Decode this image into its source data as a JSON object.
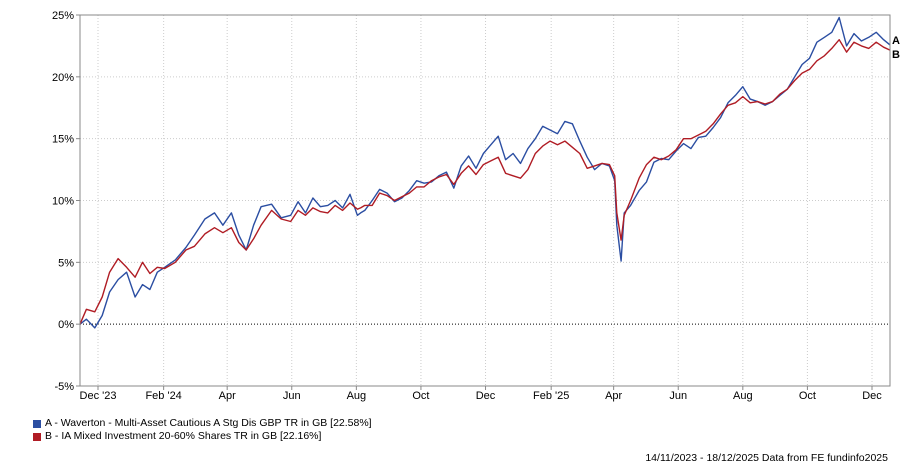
{
  "chart_data": {
    "type": "line",
    "ylim": [
      -5,
      25
    ],
    "y_ticks": [
      25,
      20,
      15,
      10,
      5,
      0,
      -5
    ],
    "y_tick_labels": [
      "25%",
      "20%",
      "15%",
      "10%",
      "5%",
      "0%",
      "-5%"
    ],
    "x_tick_labels": [
      "Dec '23",
      "Feb '24",
      "Apr",
      "Jun",
      "Aug",
      "Oct",
      "Dec",
      "Feb '25",
      "Apr",
      "Jun",
      "Aug",
      "Oct",
      "Dec"
    ],
    "x_tick_dates": [
      "2023-12-01",
      "2024-02-01",
      "2024-04-01",
      "2024-06-01",
      "2024-08-01",
      "2024-10-01",
      "2024-12-01",
      "2025-02-01",
      "2025-04-01",
      "2025-06-01",
      "2025-08-01",
      "2025-10-01",
      "2025-12-01"
    ],
    "x_range": [
      "2023-11-14",
      "2025-12-18"
    ],
    "grid": true,
    "zero_line": "dotted",
    "legend_position": "bottom-left",
    "series": [
      {
        "name": "A - Waverton - Multi-Asset Cautious A Stg Dis GBP TR in GB [22.58%]",
        "end_label": "A",
        "color": "#2b4ea2",
        "x": [
          "2023-11-14",
          "2023-11-20",
          "2023-11-28",
          "2023-12-05",
          "2023-12-12",
          "2023-12-20",
          "2023-12-28",
          "2024-01-05",
          "2024-01-12",
          "2024-01-19",
          "2024-01-26",
          "2024-02-02",
          "2024-02-12",
          "2024-02-22",
          "2024-03-01",
          "2024-03-11",
          "2024-03-20",
          "2024-03-28",
          "2024-04-05",
          "2024-04-12",
          "2024-04-19",
          "2024-04-26",
          "2024-05-03",
          "2024-05-13",
          "2024-05-22",
          "2024-05-31",
          "2024-06-07",
          "2024-06-14",
          "2024-06-21",
          "2024-06-28",
          "2024-07-05",
          "2024-07-12",
          "2024-07-19",
          "2024-07-26",
          "2024-08-02",
          "2024-08-05",
          "2024-08-09",
          "2024-08-16",
          "2024-08-23",
          "2024-08-30",
          "2024-09-06",
          "2024-09-13",
          "2024-09-20",
          "2024-09-27",
          "2024-10-04",
          "2024-10-11",
          "2024-10-18",
          "2024-10-25",
          "2024-11-01",
          "2024-11-08",
          "2024-11-15",
          "2024-11-22",
          "2024-11-29",
          "2024-12-06",
          "2024-12-13",
          "2024-12-20",
          "2024-12-27",
          "2025-01-03",
          "2025-01-10",
          "2025-01-17",
          "2025-01-24",
          "2025-01-31",
          "2025-02-07",
          "2025-02-14",
          "2025-02-21",
          "2025-02-28",
          "2025-03-07",
          "2025-03-14",
          "2025-03-21",
          "2025-03-28",
          "2025-04-02",
          "2025-04-04",
          "2025-04-08",
          "2025-04-11",
          "2025-04-17",
          "2025-04-25",
          "2025-05-02",
          "2025-05-09",
          "2025-05-16",
          "2025-05-23",
          "2025-05-30",
          "2025-06-06",
          "2025-06-13",
          "2025-06-20",
          "2025-06-27",
          "2025-07-04",
          "2025-07-11",
          "2025-07-18",
          "2025-07-25",
          "2025-08-01",
          "2025-08-08",
          "2025-08-15",
          "2025-08-22",
          "2025-08-29",
          "2025-09-05",
          "2025-09-12",
          "2025-09-19",
          "2025-09-26",
          "2025-10-03",
          "2025-10-10",
          "2025-10-17",
          "2025-10-24",
          "2025-10-31",
          "2025-11-07",
          "2025-11-14",
          "2025-11-21",
          "2025-11-28",
          "2025-12-05",
          "2025-12-12",
          "2025-12-18"
        ],
        "values": [
          0,
          0.4,
          -0.3,
          0.7,
          2.6,
          3.6,
          4.2,
          2.2,
          3.2,
          2.8,
          4.2,
          4.6,
          5.2,
          6.2,
          7.2,
          8.5,
          9.0,
          8.0,
          9.0,
          7.2,
          6.0,
          8.0,
          9.5,
          9.7,
          8.6,
          8.8,
          9.9,
          9.0,
          10.2,
          9.5,
          9.6,
          10.0,
          9.4,
          10.5,
          8.8,
          9.0,
          9.2,
          10.0,
          10.9,
          10.6,
          9.9,
          10.2,
          10.8,
          11.6,
          11.4,
          11.5,
          12.0,
          12.3,
          11.0,
          12.8,
          13.6,
          12.6,
          13.8,
          14.5,
          15.2,
          13.3,
          13.8,
          13.0,
          14.2,
          15.0,
          16.0,
          15.7,
          15.4,
          16.4,
          16.2,
          14.8,
          13.5,
          12.5,
          13.0,
          12.8,
          11.6,
          8.0,
          5.1,
          9.0,
          9.6,
          10.8,
          11.5,
          13.1,
          13.4,
          13.3,
          14.0,
          14.6,
          14.2,
          15.1,
          15.2,
          15.9,
          16.7,
          17.9,
          18.5,
          19.2,
          18.2,
          18.0,
          17.7,
          18.0,
          18.5,
          19.0,
          20.0,
          21.0,
          21.5,
          22.8,
          23.2,
          23.6,
          24.8,
          22.5,
          23.5,
          22.9,
          23.2,
          23.6,
          23.0,
          22.58
        ]
      },
      {
        "name": "B - IA Mixed Investment 20-60% Shares TR in GB [22.16%]",
        "end_label": "B",
        "color": "#b01c24",
        "x": [
          "2023-11-14",
          "2023-11-20",
          "2023-11-28",
          "2023-12-05",
          "2023-12-12",
          "2023-12-20",
          "2023-12-28",
          "2024-01-05",
          "2024-01-12",
          "2024-01-19",
          "2024-01-26",
          "2024-02-02",
          "2024-02-12",
          "2024-02-22",
          "2024-03-01",
          "2024-03-11",
          "2024-03-20",
          "2024-03-28",
          "2024-04-05",
          "2024-04-12",
          "2024-04-19",
          "2024-04-26",
          "2024-05-03",
          "2024-05-13",
          "2024-05-22",
          "2024-05-31",
          "2024-06-07",
          "2024-06-14",
          "2024-06-21",
          "2024-06-28",
          "2024-07-05",
          "2024-07-12",
          "2024-07-19",
          "2024-07-26",
          "2024-08-02",
          "2024-08-05",
          "2024-08-09",
          "2024-08-16",
          "2024-08-23",
          "2024-08-30",
          "2024-09-06",
          "2024-09-13",
          "2024-09-20",
          "2024-09-27",
          "2024-10-04",
          "2024-10-11",
          "2024-10-18",
          "2024-10-25",
          "2024-11-01",
          "2024-11-08",
          "2024-11-15",
          "2024-11-22",
          "2024-11-29",
          "2024-12-06",
          "2024-12-13",
          "2024-12-20",
          "2024-12-27",
          "2025-01-03",
          "2025-01-10",
          "2025-01-17",
          "2025-01-24",
          "2025-01-31",
          "2025-02-07",
          "2025-02-14",
          "2025-02-21",
          "2025-02-28",
          "2025-03-07",
          "2025-03-14",
          "2025-03-21",
          "2025-03-28",
          "2025-04-02",
          "2025-04-04",
          "2025-04-08",
          "2025-04-11",
          "2025-04-17",
          "2025-04-25",
          "2025-05-02",
          "2025-05-09",
          "2025-05-16",
          "2025-05-23",
          "2025-05-30",
          "2025-06-06",
          "2025-06-13",
          "2025-06-20",
          "2025-06-27",
          "2025-07-04",
          "2025-07-11",
          "2025-07-18",
          "2025-07-25",
          "2025-08-01",
          "2025-08-08",
          "2025-08-15",
          "2025-08-22",
          "2025-08-29",
          "2025-09-05",
          "2025-09-12",
          "2025-09-19",
          "2025-09-26",
          "2025-10-03",
          "2025-10-10",
          "2025-10-17",
          "2025-10-24",
          "2025-10-31",
          "2025-11-07",
          "2025-11-14",
          "2025-11-21",
          "2025-11-28",
          "2025-12-05",
          "2025-12-12",
          "2025-12-18"
        ],
        "values": [
          0,
          1.2,
          1.0,
          2.2,
          4.2,
          5.3,
          4.6,
          3.8,
          5.0,
          4.1,
          4.6,
          4.5,
          5.0,
          6.0,
          6.3,
          7.3,
          7.8,
          7.4,
          7.8,
          6.6,
          6.0,
          6.9,
          8.0,
          9.2,
          8.5,
          8.3,
          9.2,
          8.8,
          9.4,
          9.1,
          9.0,
          9.6,
          9.2,
          9.8,
          9.3,
          9.4,
          9.6,
          9.6,
          10.6,
          10.4,
          10.0,
          10.3,
          10.6,
          11.1,
          11.1,
          11.6,
          11.9,
          12.1,
          11.3,
          12.2,
          12.8,
          12.1,
          12.9,
          13.2,
          13.5,
          12.2,
          12.0,
          11.8,
          12.5,
          13.8,
          14.4,
          14.8,
          14.5,
          14.8,
          14.3,
          13.8,
          12.6,
          12.8,
          13.0,
          12.9,
          12.0,
          9.0,
          6.8,
          8.8,
          10.0,
          11.8,
          12.9,
          13.5,
          13.3,
          13.6,
          14.1,
          15.0,
          15.0,
          15.3,
          15.6,
          16.2,
          17.0,
          17.7,
          17.9,
          18.4,
          17.9,
          18.0,
          17.8,
          18.0,
          18.6,
          19.0,
          19.7,
          20.3,
          20.6,
          21.3,
          21.7,
          22.3,
          23.0,
          22.0,
          22.8,
          22.5,
          22.3,
          22.8,
          22.4,
          22.16
        ]
      }
    ]
  },
  "legend": [
    {
      "label": "A - Waverton - Multi-Asset Cautious A Stg Dis GBP TR in GB [22.58%]",
      "color": "#2b4ea2"
    },
    {
      "label": "B - IA Mixed Investment 20-60% Shares TR in GB [22.16%]",
      "color": "#b01c24"
    }
  ],
  "footer": "14/11/2023 - 18/12/2025 Data from FE fundinfo2025",
  "colors": {
    "grid": "#cccccc",
    "axis": "#000000",
    "background": "#ffffff"
  }
}
